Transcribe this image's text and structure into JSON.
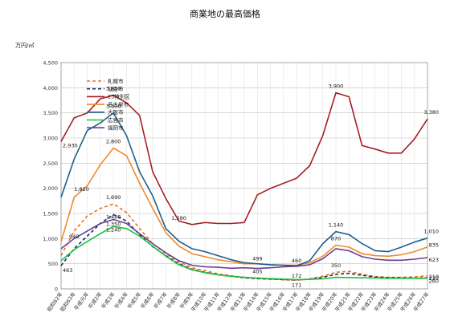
{
  "chart_data": {
    "type": "line",
    "title": "商業地の最高価格",
    "ylabel": "万円/㎡",
    "xlabel": "",
    "ylim": [
      0,
      4500
    ],
    "yticks": [
      "0",
      "500",
      "1,000",
      "1,500",
      "2,000",
      "2,500",
      "3,000",
      "3,500",
      "4,000",
      "4,500"
    ],
    "grid": true,
    "legend_position": "top-left",
    "categories": [
      "昭和62年",
      "昭和63年",
      "平成元年",
      "平成2年",
      "平成3年",
      "平成4年",
      "平成5年",
      "平成6年",
      "平成7年",
      "平成8年",
      "平成9年",
      "平成10年",
      "平成11年",
      "平成12年",
      "平成13年",
      "平成14年",
      "平成15年",
      "平成16年",
      "平成17年",
      "平成18年",
      "平成19年",
      "平成20年",
      "平成21年",
      "平成22年",
      "平成23年",
      "平成24年",
      "平成25年",
      "平成26年",
      "平成27年"
    ],
    "series": [
      {
        "name": "札幌市",
        "color": "#e8721c",
        "dash": "4,3",
        "values": [
          660,
          1150,
          1450,
          1600,
          1690,
          1520,
          1200,
          900,
          700,
          540,
          420,
          360,
          300,
          260,
          230,
          210,
          195,
          180,
          172,
          200,
          250,
          330,
          350,
          290,
          245,
          230,
          230,
          240,
          260
        ]
      },
      {
        "name": "仙台市",
        "color": "#1c2f5e",
        "dash": "4,3",
        "values": [
          463,
          800,
          1050,
          1300,
          1480,
          1350,
          1080,
          840,
          660,
          500,
          390,
          330,
          280,
          250,
          220,
          205,
          195,
          185,
          180,
          190,
          230,
          290,
          310,
          270,
          235,
          225,
          220,
          215,
          220
        ]
      },
      {
        "name": "23特別区",
        "color": "#a31f24",
        "dash": "",
        "values": [
          2930,
          3400,
          3500,
          3780,
          3850,
          3700,
          3450,
          2330,
          1800,
          1350,
          1280,
          1320,
          1300,
          1300,
          1320,
          1870,
          2000,
          2100,
          2200,
          2450,
          3050,
          3900,
          3820,
          2850,
          2780,
          2700,
          2700,
          2980,
          3380
        ]
      },
      {
        "name": "名古屋市",
        "color": "#ef8a2a",
        "dash": "",
        "values": [
          940,
          1820,
          2050,
          2470,
          2800,
          2650,
          2100,
          1600,
          1120,
          850,
          700,
          640,
          580,
          540,
          500,
          499,
          480,
          470,
          470,
          520,
          650,
          870,
          830,
          700,
          660,
          650,
          680,
          740,
          835
        ]
      },
      {
        "name": "大阪市",
        "color": "#1f5e8c",
        "dash": "",
        "values": [
          1820,
          2580,
          3150,
          3300,
          3500,
          3050,
          2330,
          1850,
          1200,
          950,
          800,
          740,
          660,
          580,
          520,
          499,
          480,
          470,
          460,
          560,
          900,
          1140,
          1080,
          900,
          760,
          740,
          830,
          930,
          1010
        ]
      },
      {
        "name": "広島市",
        "color": "#1fbf3f",
        "dash": "",
        "values": [
          560,
          780,
          940,
          1100,
          1240,
          1200,
          1050,
          850,
          650,
          480,
          380,
          320,
          280,
          250,
          230,
          215,
          205,
          195,
          185,
          190,
          200,
          230,
          225,
          220,
          215,
          210,
          210,
          210,
          210
        ]
      },
      {
        "name": "福岡市",
        "color": "#6b3f96",
        "dash": "",
        "values": [
          800,
          1000,
          1150,
          1300,
          1380,
          1300,
          1100,
          900,
          720,
          560,
          470,
          440,
          430,
          410,
          420,
          405,
          420,
          440,
          450,
          480,
          600,
          800,
          760,
          640,
          590,
          570,
          570,
          590,
          623
        ]
      }
    ],
    "annotations": [
      "3,850",
      "3,900",
      "3,380",
      "2,930",
      "3,500",
      "2,800",
      "1,820",
      "1,690",
      "1,480",
      "1,350",
      "1,240",
      "940",
      "463",
      "1,280",
      "1,140",
      "1,010",
      "870",
      "835",
      "623",
      "499",
      "460",
      "405",
      "350",
      "172",
      "171",
      "260",
      "220",
      "210"
    ]
  }
}
